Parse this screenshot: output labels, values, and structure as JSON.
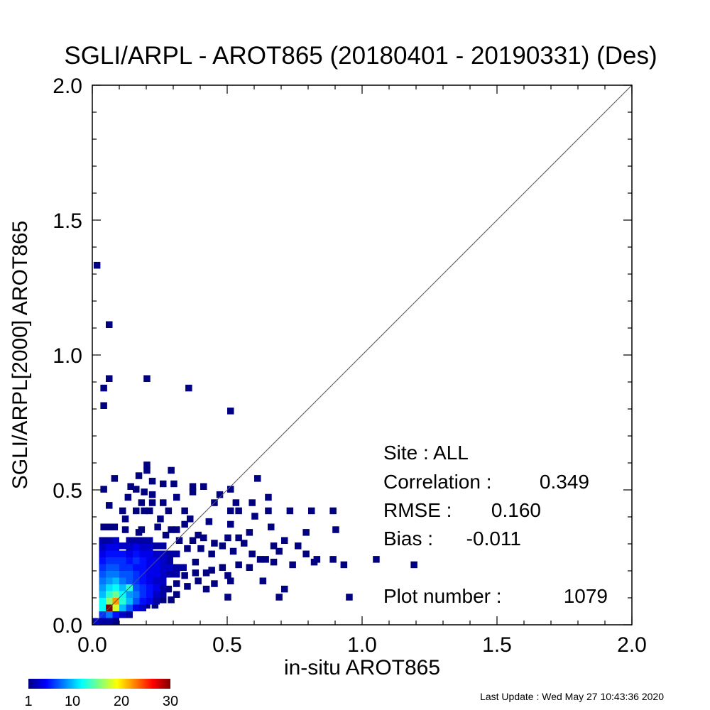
{
  "chart_data": {
    "type": "heatmap",
    "title": "SGLI/ARPL - AROT865 (20180401 - 20190331) (Des)",
    "xlabel": "in-situ AROT865",
    "ylabel": "SGLI/ARPL[2000]    AROT865",
    "xlim": [
      0.0,
      2.0
    ],
    "ylim": [
      0.0,
      2.0
    ],
    "x_ticks": [
      "0.0",
      "0.5",
      "1.0",
      "1.5",
      "2.0"
    ],
    "y_ticks": [
      "0.0",
      "0.5",
      "1.0",
      "1.5",
      "2.0"
    ],
    "bin_size": 0.025,
    "one_to_one_line": true,
    "grid": false,
    "colorbar": {
      "min": 1,
      "max": 30,
      "tick_labels": [
        "1",
        "10",
        "20",
        "30"
      ],
      "tick_values": [
        1,
        10,
        20,
        30
      ],
      "colormap": "jet"
    },
    "points": [
      [
        0.005,
        1.32,
        1
      ],
      [
        0.05,
        1.1,
        1
      ],
      [
        0.05,
        0.9,
        1
      ],
      [
        0.19,
        0.9,
        1
      ],
      [
        0.345,
        0.865,
        1
      ],
      [
        0.03,
        0.865,
        1
      ],
      [
        0.03,
        0.8,
        1
      ],
      [
        0.5,
        0.78,
        1
      ],
      [
        0.19,
        0.58,
        1
      ],
      [
        0.19,
        0.56,
        1
      ],
      [
        0.28,
        0.56,
        1
      ],
      [
        0.07,
        0.53,
        1
      ],
      [
        0.6,
        0.53,
        1
      ],
      [
        0.16,
        0.54,
        1
      ],
      [
        0.21,
        0.52,
        1
      ],
      [
        0.13,
        0.5,
        1
      ],
      [
        0.25,
        0.51,
        1
      ],
      [
        0.29,
        0.51,
        1
      ],
      [
        0.36,
        0.5,
        1
      ],
      [
        0.4,
        0.5,
        1
      ],
      [
        0.03,
        0.49,
        1
      ],
      [
        0.15,
        0.49,
        1
      ],
      [
        0.18,
        0.48,
        1
      ],
      [
        0.21,
        0.47,
        1
      ],
      [
        0.36,
        0.48,
        1
      ],
      [
        0.5,
        0.49,
        1
      ],
      [
        0.46,
        0.47,
        1
      ],
      [
        0.12,
        0.46,
        1
      ],
      [
        0.3,
        0.46,
        1
      ],
      [
        0.64,
        0.46,
        1
      ],
      [
        0.17,
        0.44,
        1
      ],
      [
        0.21,
        0.44,
        1
      ],
      [
        0.25,
        0.44,
        1
      ],
      [
        0.44,
        0.44,
        1
      ],
      [
        0.52,
        0.44,
        1
      ],
      [
        0.58,
        0.44,
        1
      ],
      [
        0.05,
        0.43,
        1
      ],
      [
        0.18,
        0.41,
        1
      ],
      [
        0.2,
        0.41,
        1
      ],
      [
        0.27,
        0.41,
        1
      ],
      [
        0.33,
        0.41,
        1
      ],
      [
        0.5,
        0.41,
        1
      ],
      [
        0.53,
        0.41,
        1
      ],
      [
        0.64,
        0.41,
        1
      ],
      [
        0.72,
        0.41,
        1
      ],
      [
        0.8,
        0.41,
        1
      ],
      [
        0.88,
        0.41,
        1
      ],
      [
        0.1,
        0.41,
        1
      ],
      [
        0.15,
        0.41,
        1
      ],
      [
        0.59,
        0.39,
        1
      ],
      [
        0.11,
        0.38,
        1
      ],
      [
        0.24,
        0.38,
        1
      ],
      [
        0.35,
        0.38,
        1
      ],
      [
        0.33,
        0.36,
        1
      ],
      [
        0.42,
        0.37,
        1
      ],
      [
        0.5,
        0.36,
        1
      ],
      [
        0.23,
        0.35,
        1
      ],
      [
        0.65,
        0.35,
        1
      ],
      [
        0.89,
        0.34,
        1
      ],
      [
        0.78,
        0.33,
        1
      ],
      [
        0.11,
        0.34,
        1
      ],
      [
        0.17,
        0.34,
        1
      ],
      [
        0.03,
        0.35,
        1
      ],
      [
        0.05,
        0.35,
        1
      ],
      [
        0.07,
        0.35,
        1
      ],
      [
        0.16,
        0.33,
        1
      ],
      [
        0.28,
        0.34,
        1
      ],
      [
        0.3,
        0.34,
        1
      ],
      [
        0.57,
        0.33,
        1
      ],
      [
        0.7,
        0.3,
        1
      ],
      [
        0.4,
        0.31,
        1
      ],
      [
        0.26,
        0.32,
        1
      ],
      [
        0.38,
        0.32,
        1
      ],
      [
        0.49,
        0.31,
        1
      ],
      [
        0.53,
        0.31,
        1
      ],
      [
        0.36,
        0.3,
        1
      ],
      [
        0.31,
        0.3,
        1
      ],
      [
        0.44,
        0.29,
        1
      ],
      [
        0.55,
        0.29,
        1
      ],
      [
        0.66,
        0.28,
        1
      ],
      [
        0.75,
        0.28,
        1
      ],
      [
        0.78,
        0.25,
        1
      ],
      [
        0.68,
        0.26,
        1
      ],
      [
        0.34,
        0.27,
        1
      ],
      [
        0.39,
        0.27,
        1
      ],
      [
        0.47,
        0.28,
        1
      ],
      [
        0.43,
        0.25,
        1
      ],
      [
        0.51,
        0.26,
        1
      ],
      [
        0.58,
        0.25,
        1
      ],
      [
        0.63,
        0.23,
        1
      ],
      [
        0.37,
        0.22,
        1
      ],
      [
        0.82,
        0.23,
        1
      ],
      [
        0.88,
        0.23,
        1
      ],
      [
        1.04,
        0.23,
        1
      ],
      [
        0.73,
        0.21,
        1
      ],
      [
        0.81,
        0.22,
        1
      ],
      [
        0.92,
        0.21,
        1
      ],
      [
        1.18,
        0.21,
        1
      ],
      [
        0.53,
        0.21,
        1
      ],
      [
        0.57,
        0.2,
        1
      ],
      [
        0.47,
        0.2,
        1
      ],
      [
        0.61,
        0.23,
        1
      ],
      [
        0.66,
        0.22,
        1
      ],
      [
        0.43,
        0.19,
        1
      ],
      [
        0.41,
        0.18,
        1
      ],
      [
        0.49,
        0.17,
        1
      ],
      [
        0.37,
        0.18,
        1
      ],
      [
        0.33,
        0.17,
        1
      ],
      [
        0.38,
        0.15,
        1
      ],
      [
        0.5,
        0.15,
        1
      ],
      [
        0.62,
        0.15,
        1
      ],
      [
        0.34,
        0.13,
        1
      ],
      [
        0.41,
        0.12,
        1
      ],
      [
        0.44,
        0.14,
        1
      ],
      [
        0.7,
        0.12,
        1
      ],
      [
        0.68,
        0.09,
        1
      ],
      [
        0.94,
        0.09,
        1
      ],
      [
        0.49,
        0.09,
        1
      ],
      [
        0.3,
        0.14,
        1
      ],
      [
        0.27,
        0.12,
        1
      ],
      [
        0.3,
        0.1,
        1
      ],
      [
        0.25,
        0.08,
        1
      ],
      [
        0.28,
        0.08,
        1
      ],
      [
        0.22,
        0.06,
        1
      ],
      [
        0.19,
        0.06,
        1
      ],
      [
        0.025,
        0.3,
        2
      ],
      [
        0.05,
        0.3,
        2
      ],
      [
        0.075,
        0.3,
        3
      ],
      [
        0.1,
        0.28,
        3
      ],
      [
        0.125,
        0.3,
        2
      ],
      [
        0.15,
        0.3,
        2
      ],
      [
        0.175,
        0.3,
        2
      ],
      [
        0.2,
        0.3,
        2
      ],
      [
        0.225,
        0.28,
        2
      ],
      [
        0.25,
        0.28,
        2
      ],
      [
        0.025,
        0.275,
        3
      ],
      [
        0.05,
        0.275,
        4
      ],
      [
        0.075,
        0.275,
        4
      ],
      [
        0.125,
        0.275,
        3
      ],
      [
        0.15,
        0.275,
        4
      ],
      [
        0.175,
        0.275,
        3
      ],
      [
        0.2,
        0.275,
        3
      ],
      [
        0.25,
        0.25,
        3
      ],
      [
        0.275,
        0.25,
        2
      ],
      [
        0.3,
        0.25,
        2
      ],
      [
        0.025,
        0.25,
        4
      ],
      [
        0.05,
        0.25,
        5
      ],
      [
        0.075,
        0.25,
        5
      ],
      [
        0.1,
        0.25,
        5
      ],
      [
        0.125,
        0.25,
        4
      ],
      [
        0.15,
        0.25,
        5
      ],
      [
        0.175,
        0.25,
        4
      ],
      [
        0.2,
        0.25,
        4
      ],
      [
        0.225,
        0.25,
        3
      ],
      [
        0.275,
        0.225,
        2
      ],
      [
        0.025,
        0.225,
        5
      ],
      [
        0.05,
        0.225,
        6
      ],
      [
        0.075,
        0.225,
        6
      ],
      [
        0.1,
        0.225,
        6
      ],
      [
        0.125,
        0.225,
        5
      ],
      [
        0.15,
        0.225,
        6
      ],
      [
        0.175,
        0.225,
        5
      ],
      [
        0.2,
        0.225,
        4
      ],
      [
        0.225,
        0.225,
        4
      ],
      [
        0.25,
        0.225,
        3
      ],
      [
        0.3,
        0.2,
        2
      ],
      [
        0.325,
        0.2,
        2
      ],
      [
        0.275,
        0.2,
        3
      ],
      [
        0.025,
        0.2,
        6
      ],
      [
        0.05,
        0.2,
        7
      ],
      [
        0.075,
        0.2,
        7
      ],
      [
        0.1,
        0.2,
        6
      ],
      [
        0.125,
        0.2,
        6
      ],
      [
        0.15,
        0.2,
        5
      ],
      [
        0.175,
        0.2,
        5
      ],
      [
        0.2,
        0.2,
        4
      ],
      [
        0.225,
        0.2,
        4
      ],
      [
        0.25,
        0.2,
        3
      ],
      [
        0.025,
        0.175,
        7
      ],
      [
        0.05,
        0.175,
        8
      ],
      [
        0.075,
        0.175,
        8
      ],
      [
        0.1,
        0.175,
        7
      ],
      [
        0.125,
        0.175,
        7
      ],
      [
        0.15,
        0.175,
        6
      ],
      [
        0.175,
        0.175,
        5
      ],
      [
        0.2,
        0.175,
        4
      ],
      [
        0.225,
        0.175,
        4
      ],
      [
        0.25,
        0.175,
        3
      ],
      [
        0.275,
        0.175,
        2
      ],
      [
        0.3,
        0.175,
        2
      ],
      [
        0.025,
        0.15,
        8
      ],
      [
        0.05,
        0.15,
        9
      ],
      [
        0.075,
        0.15,
        10
      ],
      [
        0.1,
        0.15,
        8
      ],
      [
        0.125,
        0.15,
        7
      ],
      [
        0.15,
        0.15,
        6
      ],
      [
        0.175,
        0.15,
        5
      ],
      [
        0.2,
        0.15,
        4
      ],
      [
        0.225,
        0.15,
        3
      ],
      [
        0.25,
        0.15,
        3
      ],
      [
        0.025,
        0.125,
        9
      ],
      [
        0.05,
        0.125,
        11
      ],
      [
        0.075,
        0.125,
        12
      ],
      [
        0.1,
        0.125,
        10
      ],
      [
        0.125,
        0.125,
        13
      ],
      [
        0.15,
        0.125,
        7
      ],
      [
        0.175,
        0.125,
        6
      ],
      [
        0.2,
        0.125,
        5
      ],
      [
        0.225,
        0.125,
        4
      ],
      [
        0.25,
        0.125,
        2
      ],
      [
        0.025,
        0.1,
        10
      ],
      [
        0.05,
        0.1,
        13
      ],
      [
        0.075,
        0.1,
        15
      ],
      [
        0.1,
        0.1,
        12
      ],
      [
        0.125,
        0.1,
        9
      ],
      [
        0.15,
        0.1,
        8
      ],
      [
        0.175,
        0.1,
        6
      ],
      [
        0.2,
        0.1,
        5
      ],
      [
        0.225,
        0.1,
        3
      ],
      [
        0.25,
        0.1,
        2
      ],
      [
        0.025,
        0.075,
        12
      ],
      [
        0.05,
        0.075,
        16
      ],
      [
        0.075,
        0.075,
        22
      ],
      [
        0.1,
        0.075,
        13
      ],
      [
        0.125,
        0.075,
        10
      ],
      [
        0.15,
        0.075,
        7
      ],
      [
        0.175,
        0.075,
        5
      ],
      [
        0.2,
        0.075,
        4
      ],
      [
        0.225,
        0.075,
        2
      ],
      [
        0.025,
        0.05,
        12
      ],
      [
        0.05,
        0.05,
        30
      ],
      [
        0.075,
        0.05,
        18
      ],
      [
        0.1,
        0.05,
        10
      ],
      [
        0.125,
        0.05,
        7
      ],
      [
        0.15,
        0.05,
        4
      ],
      [
        0.175,
        0.05,
        3
      ],
      [
        0.025,
        0.025,
        6
      ],
      [
        0.05,
        0.025,
        8
      ],
      [
        0.075,
        0.025,
        5
      ],
      [
        0.1,
        0.025,
        3
      ],
      [
        0.125,
        0.025,
        2
      ],
      [
        0.0,
        0.0,
        3
      ],
      [
        0.025,
        0.0,
        2
      ],
      [
        0.05,
        0.0,
        2
      ],
      [
        0.075,
        0.0,
        1
      ]
    ]
  },
  "stats": {
    "site_label": "Site : ALL",
    "correlation_label": "Correlation :",
    "correlation_value": "0.349",
    "rmse_label": "RMSE :",
    "rmse_value": "0.160",
    "bias_label": "Bias :",
    "bias_value": "-0.011",
    "plot_number_label": "Plot number :",
    "plot_number_value": "1079"
  },
  "footer": {
    "last_update": "Last Update : Wed May 27 10:43:36 2020"
  }
}
